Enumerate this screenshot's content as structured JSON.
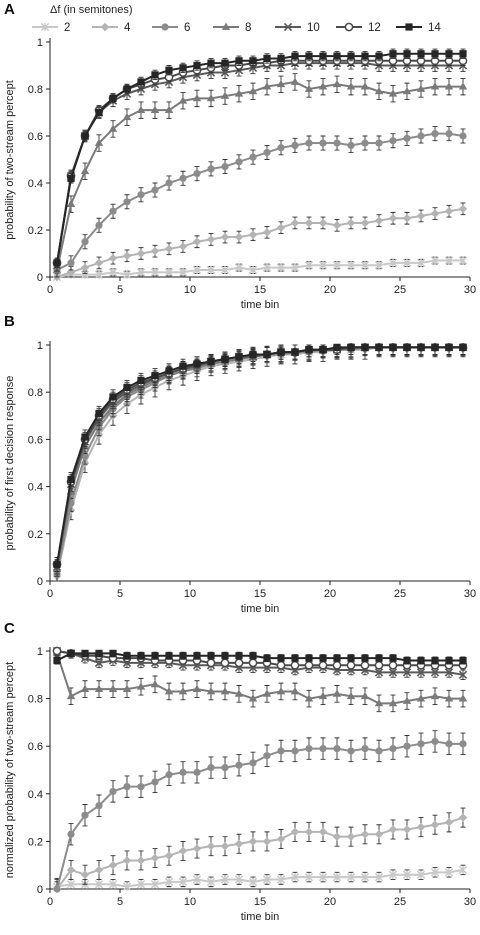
{
  "legend": {
    "title": "Δf (in semitones)",
    "series": [
      {
        "label": "2",
        "color": "#c8c8c8",
        "marker": "star"
      },
      {
        "label": "4",
        "color": "#b4b4b4",
        "marker": "diamond"
      },
      {
        "label": "6",
        "color": "#8c8c8c",
        "marker": "circle"
      },
      {
        "label": "8",
        "color": "#7a7a7a",
        "marker": "triangle"
      },
      {
        "label": "10",
        "color": "#5a5a5a",
        "marker": "x"
      },
      {
        "label": "12",
        "color": "#4a4a4a",
        "marker": "circle-open"
      },
      {
        "label": "14",
        "color": "#262626",
        "marker": "square"
      }
    ]
  },
  "chart_data": [
    {
      "panel": "A",
      "type": "line",
      "xlabel": "time bin",
      "ylabel": "probability of two-stream percept",
      "xlim": [
        0,
        30
      ],
      "ylim": [
        0,
        1
      ],
      "xticks": [
        0,
        5,
        10,
        15,
        20,
        25,
        30
      ],
      "yticks": [
        0,
        0.2,
        0.4,
        0.6,
        0.8,
        1
      ],
      "x": [
        0.5,
        1.5,
        2.5,
        3.5,
        4.5,
        5.5,
        6.5,
        7.5,
        8.5,
        9.5,
        10.5,
        11.5,
        12.5,
        13.5,
        14.5,
        15.5,
        16.5,
        17.5,
        18.5,
        19.5,
        20.5,
        21.5,
        22.5,
        23.5,
        24.5,
        25.5,
        26.5,
        27.5,
        28.5,
        29.5
      ],
      "series": [
        {
          "name": "2",
          "values": [
            0.0,
            0.01,
            0.01,
            0.01,
            0.02,
            0.01,
            0.02,
            0.02,
            0.02,
            0.02,
            0.03,
            0.03,
            0.03,
            0.04,
            0.03,
            0.04,
            0.04,
            0.04,
            0.05,
            0.05,
            0.05,
            0.05,
            0.05,
            0.05,
            0.06,
            0.06,
            0.06,
            0.07,
            0.07,
            0.07
          ],
          "error": 0.015
        },
        {
          "name": "4",
          "values": [
            0.0,
            0.02,
            0.04,
            0.06,
            0.08,
            0.09,
            0.1,
            0.11,
            0.12,
            0.13,
            0.15,
            0.16,
            0.17,
            0.17,
            0.18,
            0.19,
            0.21,
            0.23,
            0.23,
            0.23,
            0.22,
            0.23,
            0.23,
            0.24,
            0.25,
            0.25,
            0.26,
            0.27,
            0.28,
            0.29
          ],
          "error": 0.025
        },
        {
          "name": "6",
          "values": [
            0.03,
            0.06,
            0.15,
            0.22,
            0.28,
            0.32,
            0.35,
            0.37,
            0.4,
            0.42,
            0.44,
            0.46,
            0.47,
            0.49,
            0.51,
            0.53,
            0.55,
            0.56,
            0.57,
            0.57,
            0.57,
            0.56,
            0.57,
            0.57,
            0.58,
            0.59,
            0.6,
            0.61,
            0.61,
            0.6
          ],
          "error": 0.03
        },
        {
          "name": "8",
          "values": [
            0.03,
            0.31,
            0.45,
            0.57,
            0.63,
            0.68,
            0.71,
            0.71,
            0.71,
            0.75,
            0.76,
            0.76,
            0.77,
            0.78,
            0.79,
            0.81,
            0.82,
            0.83,
            0.8,
            0.81,
            0.82,
            0.81,
            0.81,
            0.79,
            0.78,
            0.79,
            0.8,
            0.81,
            0.81,
            0.81
          ],
          "error": 0.035
        },
        {
          "name": "10",
          "values": [
            0.05,
            0.43,
            0.6,
            0.7,
            0.75,
            0.78,
            0.8,
            0.82,
            0.83,
            0.85,
            0.86,
            0.87,
            0.87,
            0.88,
            0.89,
            0.9,
            0.9,
            0.91,
            0.91,
            0.91,
            0.91,
            0.91,
            0.91,
            0.9,
            0.9,
            0.9,
            0.9,
            0.9,
            0.9,
            0.9
          ],
          "error": 0.025
        },
        {
          "name": "12",
          "values": [
            0.06,
            0.43,
            0.6,
            0.71,
            0.76,
            0.8,
            0.82,
            0.84,
            0.85,
            0.87,
            0.88,
            0.89,
            0.9,
            0.9,
            0.91,
            0.91,
            0.92,
            0.92,
            0.92,
            0.92,
            0.92,
            0.92,
            0.92,
            0.92,
            0.92,
            0.92,
            0.92,
            0.92,
            0.92,
            0.92
          ],
          "error": 0.02
        },
        {
          "name": "14",
          "values": [
            0.06,
            0.42,
            0.6,
            0.7,
            0.76,
            0.8,
            0.83,
            0.86,
            0.88,
            0.89,
            0.9,
            0.91,
            0.91,
            0.92,
            0.92,
            0.93,
            0.93,
            0.94,
            0.94,
            0.94,
            0.94,
            0.94,
            0.94,
            0.94,
            0.95,
            0.95,
            0.95,
            0.95,
            0.95,
            0.95
          ],
          "error": 0.02
        }
      ]
    },
    {
      "panel": "B",
      "type": "line",
      "xlabel": "time bin",
      "ylabel": "probability of first decision response",
      "xlim": [
        0,
        30
      ],
      "ylim": [
        0,
        1
      ],
      "xticks": [
        0,
        5,
        10,
        15,
        20,
        25,
        30
      ],
      "yticks": [
        0,
        0.2,
        0.4,
        0.6,
        0.8,
        1
      ],
      "x": [
        0.5,
        1.5,
        2.5,
        3.5,
        4.5,
        5.5,
        6.5,
        7.5,
        8.5,
        9.5,
        10.5,
        11.5,
        12.5,
        13.5,
        14.5,
        15.5,
        16.5,
        17.5,
        18.5,
        19.5,
        20.5,
        21.5,
        22.5,
        23.5,
        24.5,
        25.5,
        26.5,
        27.5,
        28.5,
        29.5
      ],
      "series": [
        {
          "name": "2",
          "values": [
            0.06,
            0.4,
            0.58,
            0.68,
            0.75,
            0.8,
            0.83,
            0.86,
            0.88,
            0.9,
            0.91,
            0.92,
            0.93,
            0.94,
            0.95,
            0.96,
            0.96,
            0.97,
            0.97,
            0.98,
            0.98,
            0.98,
            0.99,
            0.99,
            0.99,
            0.99,
            0.99,
            0.99,
            0.99,
            0.99
          ],
          "error": 0.03
        },
        {
          "name": "4",
          "values": [
            0.02,
            0.3,
            0.5,
            0.62,
            0.7,
            0.75,
            0.79,
            0.82,
            0.85,
            0.87,
            0.89,
            0.91,
            0.92,
            0.93,
            0.94,
            0.95,
            0.96,
            0.96,
            0.97,
            0.97,
            0.98,
            0.98,
            0.98,
            0.99,
            0.99,
            0.99,
            0.99,
            0.99,
            0.99,
            0.99
          ],
          "error": 0.04
        },
        {
          "name": "6",
          "values": [
            0.03,
            0.33,
            0.53,
            0.65,
            0.73,
            0.78,
            0.81,
            0.84,
            0.87,
            0.89,
            0.9,
            0.92,
            0.93,
            0.94,
            0.95,
            0.96,
            0.96,
            0.97,
            0.97,
            0.98,
            0.98,
            0.98,
            0.99,
            0.99,
            0.99,
            0.99,
            0.99,
            0.99,
            0.99,
            0.99
          ],
          "error": 0.035
        },
        {
          "name": "8",
          "values": [
            0.05,
            0.38,
            0.57,
            0.67,
            0.74,
            0.79,
            0.82,
            0.85,
            0.87,
            0.89,
            0.91,
            0.92,
            0.93,
            0.94,
            0.95,
            0.96,
            0.97,
            0.97,
            0.98,
            0.98,
            0.98,
            0.99,
            0.99,
            0.99,
            0.99,
            0.99,
            0.99,
            0.99,
            0.99,
            0.99
          ],
          "error": 0.03
        },
        {
          "name": "10",
          "values": [
            0.06,
            0.41,
            0.59,
            0.69,
            0.76,
            0.8,
            0.83,
            0.86,
            0.88,
            0.9,
            0.91,
            0.93,
            0.94,
            0.95,
            0.95,
            0.96,
            0.97,
            0.97,
            0.98,
            0.98,
            0.98,
            0.99,
            0.99,
            0.99,
            0.99,
            0.99,
            0.99,
            0.99,
            0.99,
            0.99
          ],
          "error": 0.03
        },
        {
          "name": "12",
          "values": [
            0.07,
            0.42,
            0.6,
            0.7,
            0.77,
            0.81,
            0.84,
            0.86,
            0.88,
            0.9,
            0.92,
            0.93,
            0.94,
            0.95,
            0.96,
            0.96,
            0.97,
            0.97,
            0.98,
            0.98,
            0.98,
            0.99,
            0.99,
            0.99,
            0.99,
            0.99,
            0.99,
            0.99,
            0.99,
            0.99
          ],
          "error": 0.03
        },
        {
          "name": "14",
          "values": [
            0.07,
            0.43,
            0.61,
            0.71,
            0.78,
            0.82,
            0.85,
            0.87,
            0.89,
            0.91,
            0.92,
            0.93,
            0.94,
            0.95,
            0.96,
            0.96,
            0.97,
            0.97,
            0.98,
            0.98,
            0.99,
            0.99,
            0.99,
            0.99,
            0.99,
            0.99,
            0.99,
            0.99,
            0.99,
            0.99
          ],
          "error": 0.03
        }
      ]
    },
    {
      "panel": "C",
      "type": "line",
      "xlabel": "time bin",
      "ylabel": "normalized probability of two-stream percept",
      "xlim": [
        0,
        30
      ],
      "ylim": [
        0,
        1
      ],
      "xticks": [
        0,
        5,
        10,
        15,
        20,
        25,
        30
      ],
      "yticks": [
        0,
        0.2,
        0.4,
        0.6,
        0.8,
        1
      ],
      "x": [
        0.5,
        1.5,
        2.5,
        3.5,
        4.5,
        5.5,
        6.5,
        7.5,
        8.5,
        9.5,
        10.5,
        11.5,
        12.5,
        13.5,
        14.5,
        15.5,
        16.5,
        17.5,
        18.5,
        19.5,
        20.5,
        21.5,
        22.5,
        23.5,
        24.5,
        25.5,
        26.5,
        27.5,
        28.5,
        29.5
      ],
      "series": [
        {
          "name": "2",
          "values": [
            0.01,
            0.02,
            0.02,
            0.02,
            0.02,
            0.01,
            0.02,
            0.02,
            0.03,
            0.03,
            0.04,
            0.03,
            0.04,
            0.04,
            0.03,
            0.04,
            0.04,
            0.05,
            0.05,
            0.05,
            0.05,
            0.05,
            0.05,
            0.05,
            0.06,
            0.06,
            0.06,
            0.07,
            0.07,
            0.08
          ],
          "error": 0.02
        },
        {
          "name": "4",
          "values": [
            0.0,
            0.08,
            0.06,
            0.08,
            0.1,
            0.12,
            0.12,
            0.13,
            0.14,
            0.16,
            0.17,
            0.18,
            0.18,
            0.19,
            0.2,
            0.2,
            0.21,
            0.24,
            0.24,
            0.24,
            0.22,
            0.22,
            0.23,
            0.23,
            0.25,
            0.25,
            0.26,
            0.27,
            0.28,
            0.3
          ],
          "error": 0.04
        },
        {
          "name": "6",
          "values": [
            0.0,
            0.23,
            0.31,
            0.35,
            0.41,
            0.43,
            0.43,
            0.45,
            0.48,
            0.49,
            0.49,
            0.51,
            0.51,
            0.52,
            0.53,
            0.56,
            0.58,
            0.58,
            0.59,
            0.59,
            0.59,
            0.58,
            0.59,
            0.58,
            0.59,
            0.6,
            0.61,
            0.62,
            0.61,
            0.61
          ],
          "error": 0.045
        },
        {
          "name": "8",
          "values": [
            0.99,
            0.81,
            0.84,
            0.84,
            0.84,
            0.84,
            0.85,
            0.86,
            0.83,
            0.83,
            0.84,
            0.83,
            0.83,
            0.82,
            0.8,
            0.82,
            0.83,
            0.83,
            0.8,
            0.81,
            0.82,
            0.81,
            0.81,
            0.78,
            0.78,
            0.79,
            0.8,
            0.81,
            0.8,
            0.8
          ],
          "error": 0.035
        },
        {
          "name": "10",
          "values": [
            1.0,
            0.99,
            0.97,
            0.95,
            0.96,
            0.95,
            0.95,
            0.95,
            0.95,
            0.94,
            0.94,
            0.94,
            0.94,
            0.93,
            0.93,
            0.93,
            0.93,
            0.92,
            0.93,
            0.93,
            0.92,
            0.92,
            0.92,
            0.91,
            0.91,
            0.91,
            0.91,
            0.91,
            0.91,
            0.9
          ],
          "error": 0.02
        },
        {
          "name": "12",
          "values": [
            1.0,
            0.99,
            0.98,
            0.98,
            0.97,
            0.97,
            0.97,
            0.96,
            0.96,
            0.96,
            0.96,
            0.95,
            0.95,
            0.95,
            0.95,
            0.95,
            0.94,
            0.94,
            0.94,
            0.94,
            0.94,
            0.94,
            0.94,
            0.94,
            0.94,
            0.94,
            0.94,
            0.94,
            0.94,
            0.94
          ],
          "error": 0.015
        },
        {
          "name": "14",
          "values": [
            0.96,
            0.99,
            0.99,
            0.99,
            0.99,
            0.98,
            0.98,
            0.98,
            0.98,
            0.98,
            0.98,
            0.98,
            0.98,
            0.98,
            0.98,
            0.97,
            0.97,
            0.97,
            0.97,
            0.97,
            0.97,
            0.97,
            0.97,
            0.97,
            0.97,
            0.96,
            0.96,
            0.96,
            0.96,
            0.96
          ],
          "error": 0.015
        }
      ]
    }
  ]
}
